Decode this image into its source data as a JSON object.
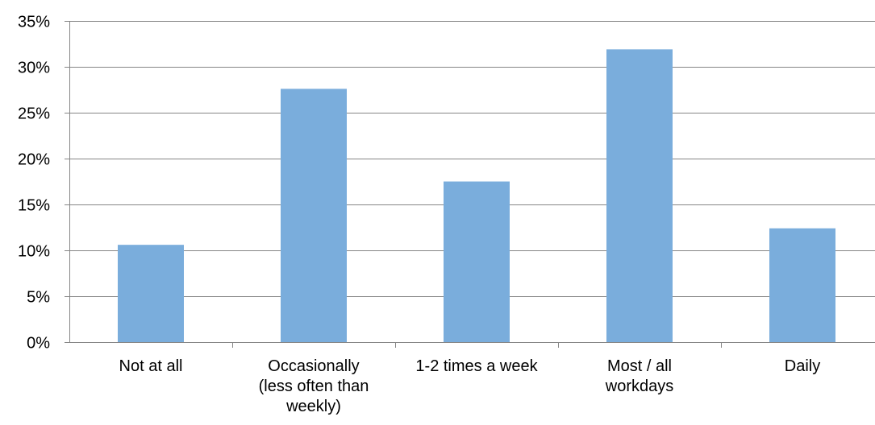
{
  "chart_data": {
    "type": "bar",
    "title": "",
    "xlabel": "",
    "ylabel": "",
    "categories": [
      [
        "Not at all"
      ],
      [
        "Occasionally",
        "(less often than",
        "weekly)"
      ],
      [
        "1-2 times a week"
      ],
      [
        "Most / all",
        "workdays"
      ],
      [
        "Daily"
      ]
    ],
    "values": [
      10.6,
      27.6,
      17.5,
      31.9,
      12.4
    ],
    "ylim": [
      0,
      35
    ],
    "y_ticks": [
      0,
      5,
      10,
      15,
      20,
      25,
      30,
      35
    ],
    "y_tick_format": "percent",
    "grid": true,
    "legend": "none",
    "colors": {
      "bar": "#7aaddc",
      "grid": "#868686",
      "text": "#000000"
    }
  }
}
